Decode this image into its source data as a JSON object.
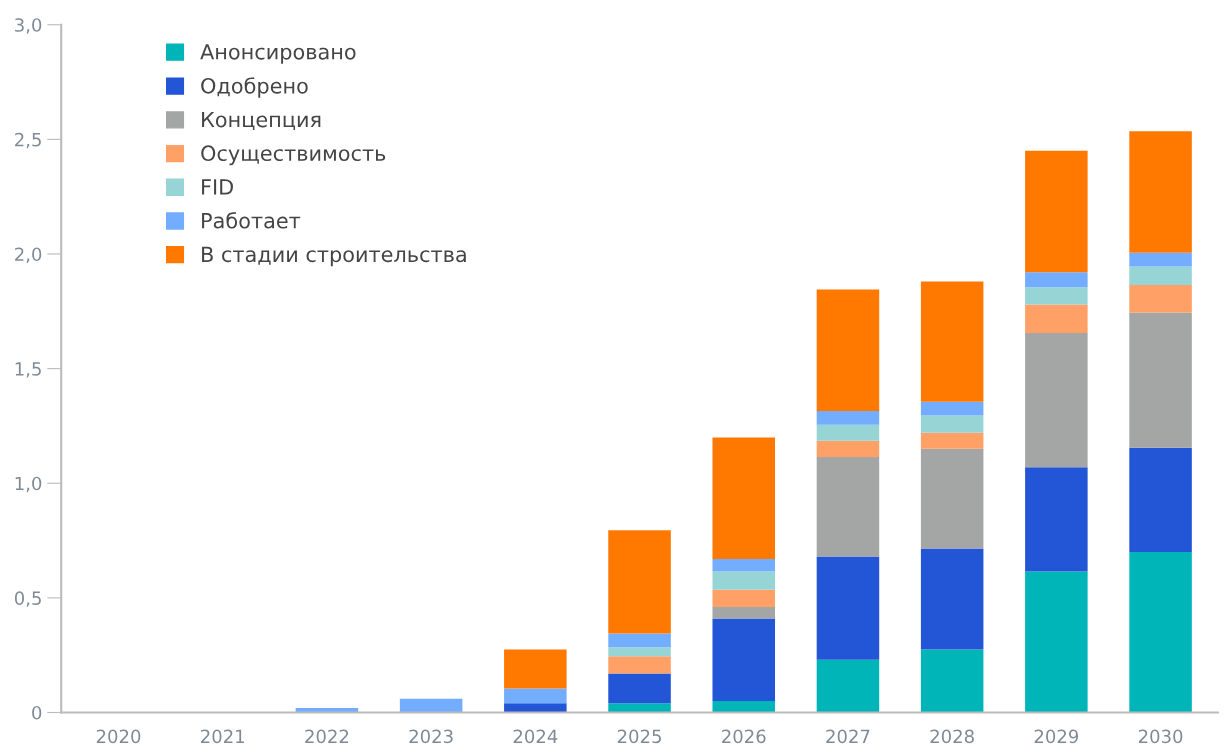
{
  "chart_data": {
    "type": "bar",
    "stacked": true,
    "categories": [
      "2020",
      "2021",
      "2022",
      "2023",
      "2024",
      "2025",
      "2026",
      "2027",
      "2028",
      "2029",
      "2030"
    ],
    "series": [
      {
        "name": "Анонсировано",
        "color": "#00b5b8",
        "values": [
          0,
          0,
          0,
          0,
          0,
          0.04,
          0.05,
          0.23,
          0.275,
          0.615,
          0.7
        ]
      },
      {
        "name": "Одобрено",
        "color": "#2356d6",
        "values": [
          0,
          0,
          0,
          0,
          0.04,
          0.13,
          0.36,
          0.45,
          0.44,
          0.455,
          0.455
        ]
      },
      {
        "name": "Концепция",
        "color": "#a4a5a5",
        "values": [
          0,
          0,
          0,
          0,
          0,
          0,
          0.05,
          0.435,
          0.435,
          0.585,
          0.59
        ]
      },
      {
        "name": "Осуществимость",
        "color": "#ffa066",
        "values": [
          0,
          0,
          0,
          0,
          0,
          0.075,
          0.075,
          0.07,
          0.07,
          0.125,
          0.12
        ]
      },
      {
        "name": "FID",
        "color": "#97d4d6",
        "values": [
          0,
          0,
          0,
          0,
          0,
          0.04,
          0.08,
          0.07,
          0.075,
          0.075,
          0.08
        ]
      },
      {
        "name": "Работает",
        "color": "#72adff",
        "values": [
          0,
          0,
          0.02,
          0.06,
          0.065,
          0.06,
          0.055,
          0.06,
          0.06,
          0.065,
          0.06
        ]
      },
      {
        "name": "В стадии строительства",
        "color": "#ff7800",
        "values": [
          0,
          0,
          0,
          0,
          0.17,
          0.45,
          0.53,
          0.53,
          0.525,
          0.53,
          0.53
        ]
      }
    ],
    "ylim": [
      0,
      3.0
    ],
    "yticks": [
      {
        "value": 0,
        "label": "0"
      },
      {
        "value": 0.5,
        "label": "0,5"
      },
      {
        "value": 1.0,
        "label": "1,0"
      },
      {
        "value": 1.5,
        "label": "1,5"
      },
      {
        "value": 2.0,
        "label": "2,0"
      },
      {
        "value": 2.5,
        "label": "2,5"
      },
      {
        "value": 3.0,
        "label": "3,0"
      }
    ],
    "grid": false,
    "legend": "top left"
  }
}
